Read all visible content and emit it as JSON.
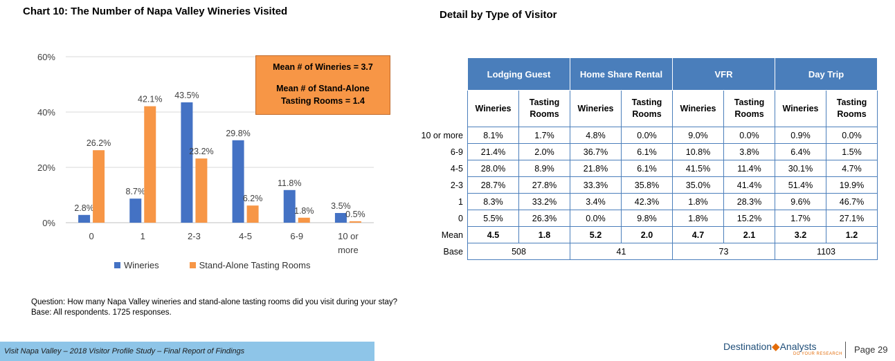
{
  "titles": {
    "chart": "Chart 10: The Number of Napa Valley Wineries Visited",
    "detail": "Detail by Type of Visitor"
  },
  "callout": {
    "line1": "Mean # of Wineries = 3.7",
    "line2": "Mean # of Stand-Alone",
    "line3": "Tasting Rooms = 1.4"
  },
  "question": "Question: How many Napa Valley wineries and stand-alone tasting rooms did you visit during your stay? Base: All respondents. 1725 responses.",
  "footer": "Visit Napa Valley – 2018 Visitor Profile Study – Final Report of Findings",
  "logo": {
    "name_a": "Destination",
    "name_b": "Analysts",
    "tagline": "DO YOUR RESEARCH"
  },
  "page": "Page 29",
  "colors": {
    "wineries": "#4472c4",
    "tasting": "#f79646",
    "header": "#4a7ebb"
  },
  "chart_data": {
    "type": "bar",
    "title": "Chart 10: The Number of Napa Valley Wineries Visited",
    "categories": [
      "0",
      "1",
      "2-3",
      "4-5",
      "6-9",
      "10 or more"
    ],
    "series": [
      {
        "name": "Wineries",
        "values": [
          2.8,
          8.7,
          43.5,
          29.8,
          11.8,
          3.5
        ],
        "labels": [
          "2.8%",
          "8.7%",
          "43.5%",
          "29.8%",
          "11.8%",
          "3.5%"
        ]
      },
      {
        "name": "Stand-Alone Tasting Rooms",
        "values": [
          26.2,
          42.1,
          23.2,
          6.2,
          1.8,
          0.5
        ],
        "labels": [
          "26.2%",
          "42.1%",
          "23.2%",
          "6.2%",
          "1.8%",
          "0.5%"
        ]
      }
    ],
    "yticks": [
      "0%",
      "20%",
      "40%",
      "60%"
    ],
    "ylim": [
      0,
      60
    ],
    "grid": true,
    "legend": "bottom"
  },
  "table": {
    "groups": [
      "Lodging Guest",
      "Home Share Rental",
      "VFR",
      "Day Trip"
    ],
    "subheaders": [
      [
        "Wineries"
      ],
      [
        "Tasting",
        "Rooms"
      ]
    ],
    "rows": [
      {
        "label": "10 or more",
        "values": [
          "8.1%",
          "1.7%",
          "4.8%",
          "0.0%",
          "9.0%",
          "0.0%",
          "0.9%",
          "0.0%"
        ]
      },
      {
        "label": "6-9",
        "values": [
          "21.4%",
          "2.0%",
          "36.7%",
          "6.1%",
          "10.8%",
          "3.8%",
          "6.4%",
          "1.5%"
        ]
      },
      {
        "label": "4-5",
        "values": [
          "28.0%",
          "8.9%",
          "21.8%",
          "6.1%",
          "41.5%",
          "11.4%",
          "30.1%",
          "4.7%"
        ]
      },
      {
        "label": "2-3",
        "values": [
          "28.7%",
          "27.8%",
          "33.3%",
          "35.8%",
          "35.0%",
          "41.4%",
          "51.4%",
          "19.9%"
        ]
      },
      {
        "label": "1",
        "values": [
          "8.3%",
          "33.2%",
          "3.4%",
          "42.3%",
          "1.8%",
          "28.3%",
          "9.6%",
          "46.7%"
        ]
      },
      {
        "label": "0",
        "values": [
          "5.5%",
          "26.3%",
          "0.0%",
          "9.8%",
          "1.8%",
          "15.2%",
          "1.7%",
          "27.1%"
        ]
      }
    ],
    "mean": {
      "label": "Mean",
      "values": [
        "4.5",
        "1.8",
        "5.2",
        "2.0",
        "4.7",
        "2.1",
        "3.2",
        "1.2"
      ]
    },
    "base": {
      "label": "Base",
      "values": [
        "508",
        "41",
        "73",
        "1103"
      ]
    }
  }
}
